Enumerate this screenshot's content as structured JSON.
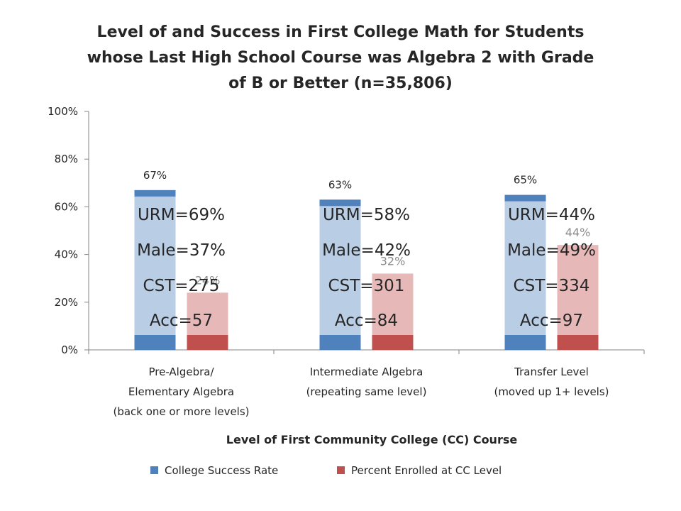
{
  "chart_data": {
    "type": "bar",
    "title_lines": [
      "Level of and Success in First College Math for Students",
      "whose Last High School Course was Algebra 2 with Grade",
      "of B or Better (n=35,806)"
    ],
    "xlabel": "Level of First Community College (CC) Course",
    "ylabel": "",
    "ylim": [
      0,
      100
    ],
    "y_ticks": [
      "0%",
      "20%",
      "40%",
      "60%",
      "80%",
      "100%"
    ],
    "grid": false,
    "legend_position": "bottom",
    "categories": [
      [
        "Pre-Algebra/",
        "Elementary Algebra",
        "(back one or more levels)"
      ],
      [
        "Intermediate Algebra",
        "(repeating same level)"
      ],
      [
        "Transfer Level",
        "(moved up 1+ levels)"
      ]
    ],
    "series": [
      {
        "name": "College Success Rate",
        "values": [
          67,
          63,
          65
        ],
        "labels": [
          "67%",
          "63%",
          "65%"
        ],
        "color": "#4f81bd",
        "fill_color": "#b9cde5"
      },
      {
        "name": "Percent Enrolled at CC Level",
        "values": [
          24,
          32,
          44
        ],
        "labels": [
          "24%",
          "32%",
          "44%"
        ],
        "color": "#c0504d",
        "fill_color": "#e6b9b8"
      }
    ],
    "annotations": [
      [
        "URM=69%",
        "Male=37%",
        "CST=275",
        "Acc=57"
      ],
      [
        "URM=58%",
        "Male=42%",
        "CST=301",
        "Acc=84"
      ],
      [
        "URM=44%",
        "Male=49%",
        "CST=334",
        "Acc=97"
      ]
    ]
  }
}
